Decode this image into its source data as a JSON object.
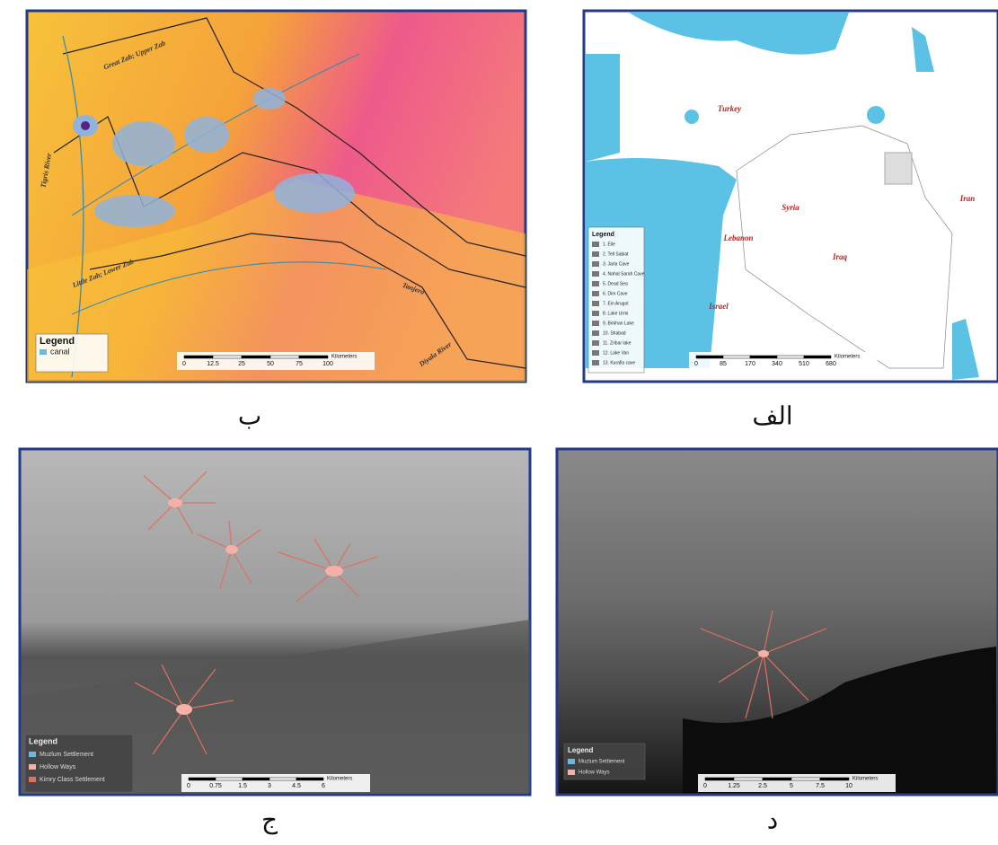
{
  "panels": [
    {
      "label": "ب",
      "labels": [
        "Great Zab; Upper Zab",
        "Tigris River",
        "Little Zab; Lower Zab",
        "Tanjero",
        "Diyala River"
      ],
      "legend": {
        "title": "Legend",
        "items": [
          "canal"
        ]
      },
      "scale": {
        "ticks": [
          "0",
          "12.5",
          "25",
          "50",
          "75",
          "100"
        ],
        "unit": "Kilometers"
      }
    },
    {
      "label": "الف",
      "labels": [
        "Turkey",
        "Syria",
        "Lebanon",
        "Israel",
        "Iraq",
        "Iran"
      ],
      "legend": {
        "title": "Legend",
        "items": [
          "1. Eile",
          "2. Tell Sabiat",
          "3. Jarla Cave",
          "4. Nahal Sarah Cave",
          "5. Dead Sea",
          "6. Dim Cave",
          "7. Ein Arugot",
          "8. Lake Urmi",
          "9. Birkhan Lake",
          "10. Shabad",
          "11. Zribar lake",
          "12. Lake Van",
          "13. Kurafia cave"
        ]
      },
      "scale": {
        "ticks": [
          "0",
          "85",
          "170",
          "340",
          "510",
          "680"
        ],
        "unit": "Kilometers"
      }
    },
    {
      "label": "ج",
      "labels": [],
      "legend": {
        "title": "Legend",
        "items": [
          "Muzlum Settlement",
          "Hollow Ways",
          "Kimry Class Settlement"
        ]
      },
      "scale": {
        "ticks": [
          "0",
          "0.75",
          "1.5",
          "3",
          "4.5",
          "6"
        ],
        "unit": "Kilometers"
      }
    },
    {
      "label": "د",
      "labels": [],
      "legend": {
        "title": "Legend",
        "items": [
          "Muzlum Settlement",
          "Hollow Ways"
        ]
      },
      "scale": {
        "ticks": [
          "0",
          "1.25",
          "2.5",
          "5",
          "7.5",
          "10"
        ],
        "unit": "Kilometers"
      }
    }
  ]
}
